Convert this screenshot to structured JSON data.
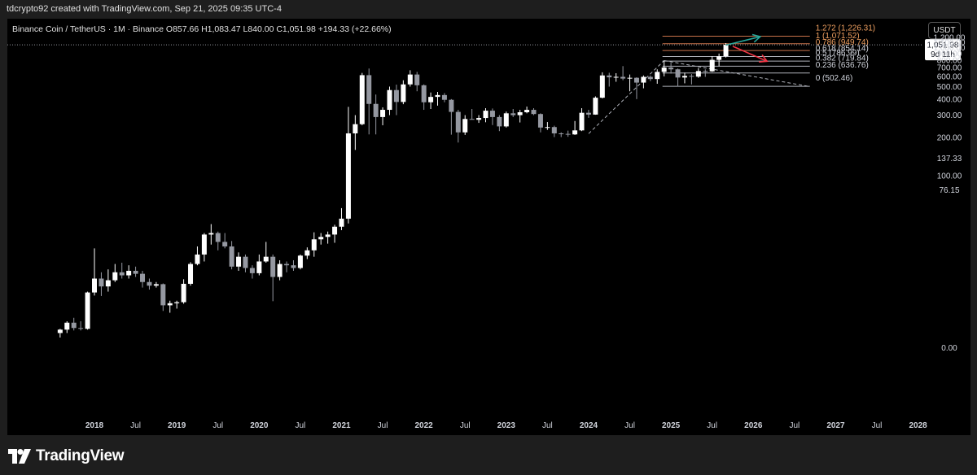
{
  "header": {
    "text": "tdcrypto92 created with TradingView.com, Sep 21, 2025 09:35 UTC-4"
  },
  "symbol_line": "Binance Coin / TetherUS · 1M · Binance  O857.66  H1,083.47  L840.00  C1,051.98  +194.33 (+22.66%)",
  "currency_button": "USDT",
  "footer": {
    "brand": "TradingView"
  },
  "colors": {
    "background": "#000000",
    "candle_up": "#ffffff",
    "candle_down": "#9598a1",
    "fib_text": "#d1d4dc",
    "fib_orange": "#f0a060",
    "fib_line_orange": "#c8724a",
    "arrow_up": "#26a69a",
    "arrow_down": "#f23645"
  },
  "price_badge": {
    "price": "1,051.98",
    "countdown": "9d 11h"
  },
  "chart_data": {
    "type": "candlestick",
    "title": "Binance Coin / TetherUS · 1M · Binance",
    "interval": "1M",
    "y_scale": "log",
    "y_ticks": [
      "1,200.00",
      "1,100.00",
      "1,000.00",
      "900.00",
      "800.00",
      "700.00",
      "600.00",
      "500.00",
      "400.00",
      "300.00",
      "200.00",
      "137.33",
      "100.00",
      "76.15",
      "0.00"
    ],
    "x_ticks": [
      {
        "label": "2018",
        "date": "2018-01",
        "bold": true
      },
      {
        "label": "Jul",
        "date": "2018-07",
        "bold": false
      },
      {
        "label": "2019",
        "date": "2019-01",
        "bold": true
      },
      {
        "label": "Jul",
        "date": "2019-07",
        "bold": false
      },
      {
        "label": "2020",
        "date": "2020-01",
        "bold": true
      },
      {
        "label": "Jul",
        "date": "2020-07",
        "bold": false
      },
      {
        "label": "2021",
        "date": "2021-01",
        "bold": true
      },
      {
        "label": "Jul",
        "date": "2021-07",
        "bold": false
      },
      {
        "label": "2022",
        "date": "2022-01",
        "bold": true
      },
      {
        "label": "Jul",
        "date": "2022-07",
        "bold": false
      },
      {
        "label": "2023",
        "date": "2023-01",
        "bold": true
      },
      {
        "label": "Jul",
        "date": "2023-07",
        "bold": false
      },
      {
        "label": "2024",
        "date": "2024-01",
        "bold": true
      },
      {
        "label": "Jul",
        "date": "2024-07",
        "bold": false
      },
      {
        "label": "2025",
        "date": "2025-01",
        "bold": true
      },
      {
        "label": "Jul",
        "date": "2025-07",
        "bold": false
      },
      {
        "label": "2026",
        "date": "2026-01",
        "bold": true
      },
      {
        "label": "Jul",
        "date": "2026-07",
        "bold": false
      },
      {
        "label": "2027",
        "date": "2027-01",
        "bold": true
      },
      {
        "label": "Jul",
        "date": "2027-07",
        "bold": false
      },
      {
        "label": "2028",
        "date": "2028-01",
        "bold": true
      }
    ],
    "candles": [
      {
        "d": "2017-08",
        "o": 1.5,
        "h": 2.0,
        "l": 1.0,
        "c": 1.9
      },
      {
        "d": "2017-09",
        "o": 1.9,
        "h": 3.0,
        "l": 1.5,
        "c": 2.8
      },
      {
        "d": "2017-10",
        "o": 2.8,
        "h": 3.5,
        "l": 1.8,
        "c": 2.1
      },
      {
        "d": "2017-11",
        "o": 2.1,
        "h": 3.0,
        "l": 1.8,
        "c": 2.0
      },
      {
        "d": "2017-12",
        "o": 2.0,
        "h": 8.5,
        "l": 1.9,
        "c": 8.3
      },
      {
        "d": "2018-01",
        "o": 8.3,
        "h": 24.0,
        "l": 7.6,
        "c": 12.0
      },
      {
        "d": "2018-02",
        "o": 12.0,
        "h": 14.0,
        "l": 7.5,
        "c": 9.8
      },
      {
        "d": "2018-03",
        "o": 9.8,
        "h": 15.0,
        "l": 8.5,
        "c": 11.5
      },
      {
        "d": "2018-04",
        "o": 11.5,
        "h": 17.0,
        "l": 11.0,
        "c": 14.0
      },
      {
        "d": "2018-05",
        "o": 14.0,
        "h": 17.5,
        "l": 12.0,
        "c": 13.0
      },
      {
        "d": "2018-06",
        "o": 13.0,
        "h": 16.5,
        "l": 12.0,
        "c": 14.5
      },
      {
        "d": "2018-07",
        "o": 14.5,
        "h": 16.0,
        "l": 12.5,
        "c": 13.5
      },
      {
        "d": "2018-08",
        "o": 13.5,
        "h": 14.5,
        "l": 9.5,
        "c": 11.0
      },
      {
        "d": "2018-09",
        "o": 11.0,
        "h": 12.0,
        "l": 9.0,
        "c": 10.0
      },
      {
        "d": "2018-10",
        "o": 10.0,
        "h": 11.0,
        "l": 9.5,
        "c": 10.4
      },
      {
        "d": "2018-11",
        "o": 10.4,
        "h": 10.6,
        "l": 4.6,
        "c": 5.6
      },
      {
        "d": "2018-12",
        "o": 5.6,
        "h": 6.5,
        "l": 4.3,
        "c": 6.0
      },
      {
        "d": "2019-01",
        "o": 6.0,
        "h": 6.5,
        "l": 5.0,
        "c": 6.2
      },
      {
        "d": "2019-02",
        "o": 6.2,
        "h": 11.8,
        "l": 5.9,
        "c": 10.5
      },
      {
        "d": "2019-03",
        "o": 10.5,
        "h": 17.7,
        "l": 10.0,
        "c": 17.0
      },
      {
        "d": "2019-04",
        "o": 17.0,
        "h": 25.0,
        "l": 16.5,
        "c": 21.0
      },
      {
        "d": "2019-05",
        "o": 21.0,
        "h": 33.0,
        "l": 18.0,
        "c": 32.0
      },
      {
        "d": "2019-06",
        "o": 32.0,
        "h": 39.5,
        "l": 26.0,
        "c": 33.0
      },
      {
        "d": "2019-07",
        "o": 33.0,
        "h": 34.0,
        "l": 23.0,
        "c": 27.5
      },
      {
        "d": "2019-08",
        "o": 27.5,
        "h": 33.0,
        "l": 24.0,
        "c": 25.0
      },
      {
        "d": "2019-09",
        "o": 25.0,
        "h": 28.0,
        "l": 15.0,
        "c": 16.0
      },
      {
        "d": "2019-10",
        "o": 16.0,
        "h": 22.0,
        "l": 14.5,
        "c": 20.0
      },
      {
        "d": "2019-11",
        "o": 20.0,
        "h": 21.0,
        "l": 14.0,
        "c": 15.5
      },
      {
        "d": "2019-12",
        "o": 15.5,
        "h": 16.5,
        "l": 12.0,
        "c": 13.7
      },
      {
        "d": "2020-01",
        "o": 13.7,
        "h": 21.0,
        "l": 13.0,
        "c": 18.0
      },
      {
        "d": "2020-02",
        "o": 18.0,
        "h": 27.5,
        "l": 17.5,
        "c": 20.0
      },
      {
        "d": "2020-03",
        "o": 20.0,
        "h": 21.0,
        "l": 6.4,
        "c": 12.5
      },
      {
        "d": "2020-04",
        "o": 12.5,
        "h": 18.5,
        "l": 11.5,
        "c": 17.0
      },
      {
        "d": "2020-05",
        "o": 17.0,
        "h": 18.0,
        "l": 14.0,
        "c": 16.5
      },
      {
        "d": "2020-06",
        "o": 16.5,
        "h": 18.5,
        "l": 14.5,
        "c": 15.5
      },
      {
        "d": "2020-07",
        "o": 15.5,
        "h": 21.0,
        "l": 15.0,
        "c": 20.5
      },
      {
        "d": "2020-08",
        "o": 20.5,
        "h": 24.5,
        "l": 19.0,
        "c": 23.0
      },
      {
        "d": "2020-09",
        "o": 23.0,
        "h": 33.5,
        "l": 20.0,
        "c": 29.0
      },
      {
        "d": "2020-10",
        "o": 29.0,
        "h": 33.0,
        "l": 26.0,
        "c": 30.5
      },
      {
        "d": "2020-11",
        "o": 30.5,
        "h": 34.0,
        "l": 26.5,
        "c": 32.0
      },
      {
        "d": "2020-12",
        "o": 32.0,
        "h": 39.0,
        "l": 27.0,
        "c": 37.5
      },
      {
        "d": "2021-01",
        "o": 37.5,
        "h": 54.0,
        "l": 35.0,
        "c": 44.0
      },
      {
        "d": "2021-02",
        "o": 44.0,
        "h": 348.0,
        "l": 40.0,
        "c": 216.0
      },
      {
        "d": "2021-03",
        "o": 216.0,
        "h": 300.0,
        "l": 160.0,
        "c": 255.0
      },
      {
        "d": "2021-04",
        "o": 255.0,
        "h": 638.0,
        "l": 250.0,
        "c": 613.0
      },
      {
        "d": "2021-05",
        "o": 613.0,
        "h": 690.0,
        "l": 212.0,
        "c": 367.0
      },
      {
        "d": "2021-06",
        "o": 367.0,
        "h": 434.0,
        "l": 212.0,
        "c": 290.0
      },
      {
        "d": "2021-07",
        "o": 290.0,
        "h": 345.0,
        "l": 250.0,
        "c": 330.0
      },
      {
        "d": "2021-08",
        "o": 330.0,
        "h": 500.0,
        "l": 300.0,
        "c": 470.0
      },
      {
        "d": "2021-09",
        "o": 470.0,
        "h": 518.0,
        "l": 300.0,
        "c": 380.0
      },
      {
        "d": "2021-10",
        "o": 380.0,
        "h": 560.0,
        "l": 365.0,
        "c": 520.0
      },
      {
        "d": "2021-11",
        "o": 520.0,
        "h": 669.0,
        "l": 500.0,
        "c": 620.0
      },
      {
        "d": "2021-12",
        "o": 620.0,
        "h": 650.0,
        "l": 460.0,
        "c": 512.0
      },
      {
        "d": "2022-01",
        "o": 512.0,
        "h": 520.0,
        "l": 330.0,
        "c": 378.0
      },
      {
        "d": "2022-02",
        "o": 378.0,
        "h": 450.0,
        "l": 335.0,
        "c": 416.0
      },
      {
        "d": "2022-03",
        "o": 416.0,
        "h": 455.0,
        "l": 356.0,
        "c": 430.0
      },
      {
        "d": "2022-04",
        "o": 430.0,
        "h": 445.0,
        "l": 378.0,
        "c": 395.0
      },
      {
        "d": "2022-05",
        "o": 395.0,
        "h": 400.0,
        "l": 211.0,
        "c": 318.0
      },
      {
        "d": "2022-06",
        "o": 318.0,
        "h": 330.0,
        "l": 183.0,
        "c": 220.0
      },
      {
        "d": "2022-07",
        "o": 220.0,
        "h": 300.0,
        "l": 210.0,
        "c": 280.0
      },
      {
        "d": "2022-08",
        "o": 280.0,
        "h": 335.0,
        "l": 277.0,
        "c": 276.0
      },
      {
        "d": "2022-09",
        "o": 276.0,
        "h": 300.0,
        "l": 261.0,
        "c": 285.0
      },
      {
        "d": "2022-10",
        "o": 285.0,
        "h": 340.0,
        "l": 264.0,
        "c": 325.0
      },
      {
        "d": "2022-11",
        "o": 325.0,
        "h": 338.0,
        "l": 251.0,
        "c": 290.0
      },
      {
        "d": "2022-12",
        "o": 290.0,
        "h": 300.0,
        "l": 225.0,
        "c": 245.0
      },
      {
        "d": "2023-01",
        "o": 245.0,
        "h": 320.0,
        "l": 240.0,
        "c": 310.0
      },
      {
        "d": "2023-02",
        "o": 310.0,
        "h": 335.0,
        "l": 290.0,
        "c": 300.0
      },
      {
        "d": "2023-03",
        "o": 300.0,
        "h": 330.0,
        "l": 263.0,
        "c": 316.0
      },
      {
        "d": "2023-04",
        "o": 316.0,
        "h": 350.0,
        "l": 310.0,
        "c": 330.0
      },
      {
        "d": "2023-05",
        "o": 330.0,
        "h": 340.0,
        "l": 300.0,
        "c": 306.0
      },
      {
        "d": "2023-06",
        "o": 306.0,
        "h": 310.0,
        "l": 220.0,
        "c": 240.0
      },
      {
        "d": "2023-07",
        "o": 240.0,
        "h": 265.0,
        "l": 230.0,
        "c": 242.0
      },
      {
        "d": "2023-08",
        "o": 242.0,
        "h": 248.0,
        "l": 202.0,
        "c": 216.0
      },
      {
        "d": "2023-09",
        "o": 216.0,
        "h": 220.0,
        "l": 202.0,
        "c": 214.0
      },
      {
        "d": "2023-10",
        "o": 214.0,
        "h": 227.0,
        "l": 203.0,
        "c": 212.0
      },
      {
        "d": "2023-11",
        "o": 212.0,
        "h": 270.0,
        "l": 210.0,
        "c": 228.0
      },
      {
        "d": "2023-12",
        "o": 228.0,
        "h": 340.0,
        "l": 225.0,
        "c": 313.0
      },
      {
        "d": "2024-01",
        "o": 313.0,
        "h": 330.0,
        "l": 286.0,
        "c": 303.0
      },
      {
        "d": "2024-02",
        "o": 303.0,
        "h": 420.0,
        "l": 302.0,
        "c": 410.0
      },
      {
        "d": "2024-03",
        "o": 410.0,
        "h": 645.0,
        "l": 405.0,
        "c": 610.0
      },
      {
        "d": "2024-04",
        "o": 610.0,
        "h": 640.0,
        "l": 500.0,
        "c": 590.0
      },
      {
        "d": "2024-05",
        "o": 590.0,
        "h": 635.0,
        "l": 545.0,
        "c": 595.0
      },
      {
        "d": "2024-06",
        "o": 595.0,
        "h": 720.0,
        "l": 560.0,
        "c": 577.0
      },
      {
        "d": "2024-07",
        "o": 577.0,
        "h": 620.0,
        "l": 460.0,
        "c": 585.0
      },
      {
        "d": "2024-08",
        "o": 585.0,
        "h": 590.0,
        "l": 400.0,
        "c": 537.0
      },
      {
        "d": "2024-09",
        "o": 537.0,
        "h": 610.0,
        "l": 485.0,
        "c": 595.0
      },
      {
        "d": "2024-10",
        "o": 595.0,
        "h": 610.0,
        "l": 551.0,
        "c": 572.0
      },
      {
        "d": "2024-11",
        "o": 572.0,
        "h": 680.0,
        "l": 526.0,
        "c": 650.0
      },
      {
        "d": "2024-12",
        "o": 650.0,
        "h": 793.0,
        "l": 600.0,
        "c": 702.0
      },
      {
        "d": "2025-01",
        "o": 702.0,
        "h": 765.0,
        "l": 630.0,
        "c": 680.0
      },
      {
        "d": "2025-02",
        "o": 680.0,
        "h": 690.0,
        "l": 500.0,
        "c": 588.0
      },
      {
        "d": "2025-03",
        "o": 588.0,
        "h": 640.0,
        "l": 530.0,
        "c": 605.0
      },
      {
        "d": "2025-04",
        "o": 605.0,
        "h": 625.0,
        "l": 520.0,
        "c": 597.0
      },
      {
        "d": "2025-05",
        "o": 597.0,
        "h": 695.0,
        "l": 585.0,
        "c": 660.0
      },
      {
        "d": "2025-06",
        "o": 660.0,
        "h": 680.0,
        "l": 595.0,
        "c": 656.0
      },
      {
        "d": "2025-07",
        "o": 656.0,
        "h": 860.0,
        "l": 650.0,
        "c": 805.0
      },
      {
        "d": "2025-08",
        "o": 805.0,
        "h": 900.0,
        "l": 720.0,
        "c": 857.66
      },
      {
        "d": "2025-09",
        "o": 857.66,
        "h": 1083.47,
        "l": 840.0,
        "c": 1051.98
      }
    ],
    "fibonacci": {
      "from": {
        "d": "2025-02",
        "price": 502.46
      },
      "to": {
        "d": "2024-12",
        "price": 786.99
      },
      "levels": [
        {
          "ratio": "1.272",
          "price": 1226.31,
          "label": "1.272 (1,226.31)",
          "color": "#f0a060"
        },
        {
          "ratio": "1",
          "price": 1071.52,
          "label": "1 (1,071.52)",
          "color": "#f0a060"
        },
        {
          "ratio": "0.786",
          "price": 949.74,
          "label": "0.786 (949.74)",
          "color": "#f0a060"
        },
        {
          "ratio": "0.618",
          "price": 854.14,
          "label": "0.618 (854.14)",
          "color": "#d1d4dc"
        },
        {
          "ratio": "0.5",
          "price": 786.99,
          "label": "0.5 (786.99)",
          "color": "#d1d4dc"
        },
        {
          "ratio": "0.382",
          "price": 719.84,
          "label": "0.382 (719.84)",
          "color": "#d1d4dc"
        },
        {
          "ratio": "0.236",
          "price": 636.76,
          "label": "0.236 (636.76)",
          "color": "#d1d4dc"
        },
        {
          "ratio": "0",
          "price": 502.46,
          "label": "0 (502.46)",
          "color": "#d1d4dc"
        }
      ]
    },
    "trend_lines": [
      {
        "from": {
          "d": "2024-01",
          "price": 215
        },
        "to": {
          "d": "2024-12",
          "price": 795
        }
      },
      {
        "from": {
          "d": "2024-12",
          "price": 795
        },
        "to": {
          "d": "2026-09",
          "price": 502.46
        }
      }
    ],
    "arrows": [
      {
        "direction": "up",
        "from": {
          "d": "2025-09",
          "price": 1045
        },
        "to": {
          "d": "2026-02",
          "price": 1215
        },
        "color": "#26a69a"
      },
      {
        "direction": "down",
        "from": {
          "d": "2025-10",
          "price": 1025
        },
        "to": {
          "d": "2026-03",
          "price": 785
        },
        "color": "#f23645"
      }
    ],
    "current_price": 1051.98
  }
}
